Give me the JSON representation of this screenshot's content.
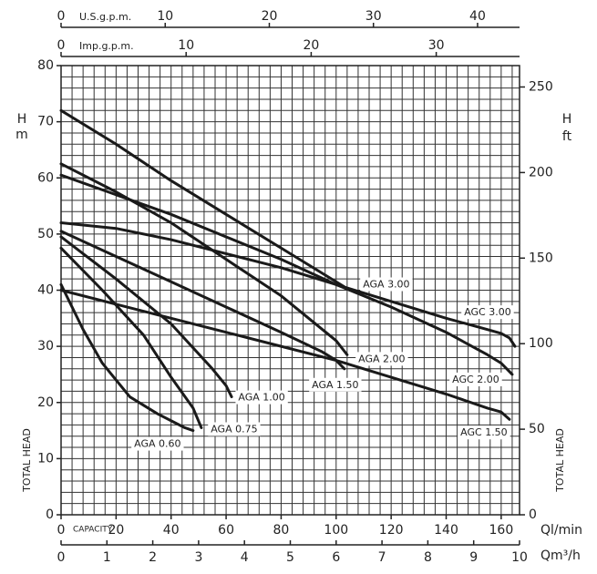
{
  "chart_data": {
    "type": "line",
    "x_label": "Ql/min",
    "x_caption": "CAPACITY",
    "y_label": "H",
    "y_unit": "m",
    "y2_label": "H",
    "y2_unit": "ft",
    "side_label": "TOTAL HEAD",
    "xlim": [
      0,
      166.67
    ],
    "xticks": [
      0,
      20,
      40,
      60,
      80,
      100,
      120,
      140,
      160
    ],
    "ylim": [
      0,
      80
    ],
    "yticks": [
      0,
      10,
      20,
      30,
      40,
      50,
      60,
      70,
      80
    ],
    "y2lim": [
      0,
      262.5
    ],
    "y2ticks": [
      0,
      50,
      100,
      150,
      200,
      250
    ],
    "grid": true,
    "x_grid": [
      0,
      4,
      8,
      12,
      16,
      20,
      24,
      28,
      32,
      36,
      40,
      44,
      48,
      52,
      56,
      60,
      64,
      68,
      72,
      76,
      80,
      84,
      88,
      92,
      96,
      100,
      104,
      108,
      112,
      116,
      120,
      124,
      128,
      132,
      136,
      140,
      144,
      148,
      152,
      156,
      160,
      164
    ],
    "y_grid": [
      0,
      2,
      4,
      6,
      8,
      10,
      12,
      14,
      16,
      18,
      20,
      22,
      24,
      26,
      28,
      30,
      32,
      34,
      36,
      38,
      40,
      42,
      44,
      46,
      48,
      50,
      52,
      54,
      56,
      58,
      60,
      62,
      64,
      66,
      68,
      70,
      72,
      74,
      76,
      78,
      80
    ],
    "top_axes": [
      {
        "label": "U.S.g.p.m.",
        "lim": [
          0,
          44.03
        ],
        "ticks": [
          0,
          10,
          20,
          30,
          40
        ]
      },
      {
        "label": "Imp.g.p.m.",
        "lim": [
          0,
          36.66
        ],
        "ticks": [
          0,
          10,
          20,
          30
        ]
      }
    ],
    "bottom_axis": {
      "label": "Qm³/h",
      "lim": [
        0,
        10
      ],
      "ticks": [
        0,
        1,
        2,
        3,
        4,
        5,
        6,
        7,
        8,
        9,
        10
      ]
    },
    "series": [
      {
        "name": "AGA 3.00",
        "color": "#1a1a1a",
        "x": [
          0,
          20,
          40,
          60,
          80,
          100,
          105
        ],
        "values": [
          72,
          66,
          59.5,
          53.5,
          47.5,
          41.5,
          40
        ]
      },
      {
        "name": "AGC 3.00",
        "color": "#1a1a1a",
        "x": [
          0,
          20,
          40,
          60,
          80,
          100,
          120,
          140,
          155,
          160,
          163,
          165
        ],
        "values": [
          52,
          51,
          49,
          46.5,
          44,
          41,
          38,
          35,
          33,
          32.3,
          31.5,
          30
        ]
      },
      {
        "name": "AGC 2.00",
        "color": "#1a1a1a",
        "x": [
          0,
          20,
          40,
          60,
          80,
          100,
          120,
          140,
          155,
          160,
          164
        ],
        "values": [
          60.5,
          57,
          53.5,
          49.5,
          45.5,
          41,
          37,
          32.5,
          28.5,
          27,
          25
        ]
      },
      {
        "name": "AGA 2.00",
        "color": "#1a1a1a",
        "x": [
          0,
          20,
          40,
          60,
          80,
          100,
          104
        ],
        "values": [
          62.5,
          57.5,
          52,
          45.5,
          39,
          31,
          28.5
        ]
      },
      {
        "name": "AGA 1.50",
        "color": "#1a1a1a",
        "x": [
          0,
          20,
          40,
          60,
          80,
          95,
          100,
          103
        ],
        "values": [
          50.5,
          46,
          41.5,
          37,
          32.5,
          29,
          27.5,
          26
        ]
      },
      {
        "name": "AGC 1.50",
        "color": "#1a1a1a",
        "x": [
          0,
          20,
          40,
          60,
          80,
          100,
          120,
          140,
          155,
          160,
          163
        ],
        "values": [
          40,
          37.5,
          35,
          32.5,
          30,
          27.5,
          24.5,
          21.5,
          19,
          18.3,
          17
        ]
      },
      {
        "name": "AGA 1.00",
        "color": "#1a1a1a",
        "x": [
          0,
          20,
          40,
          55,
          60,
          62
        ],
        "values": [
          49.5,
          42,
          34,
          26,
          23,
          21
        ]
      },
      {
        "name": "AGA 0.75",
        "color": "#1a1a1a",
        "x": [
          0,
          15,
          30,
          40,
          48,
          51
        ],
        "values": [
          47.5,
          40,
          32,
          24.5,
          19,
          15.5
        ]
      },
      {
        "name": "AGA 0.60",
        "color": "#1a1a1a",
        "x": [
          0,
          8,
          15,
          25,
          35,
          45,
          48
        ],
        "values": [
          41,
          33,
          27,
          21,
          18,
          15.5,
          15
        ]
      }
    ]
  }
}
